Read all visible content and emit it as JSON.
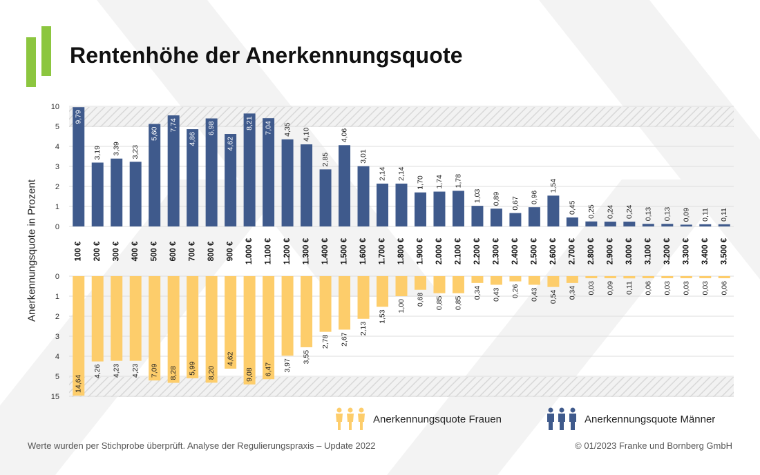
{
  "title": "Rentenhöhe der Anerkennungsquote",
  "footer": {
    "note": "Werte wurden per Stichprobe überprüft. Analyse der Regulierungspraxis – Update 2022",
    "copyright": "© 01/2023 Franke und Bornberg GmbH"
  },
  "colors": {
    "men": "#3f5a8c",
    "women": "#fdcd6b",
    "accent": "#8cc63f"
  },
  "legend": {
    "women": "Anerkennungsquote Frauen",
    "men": "Anerkennungsquote Männer",
    "women_icon": "women-group-icon",
    "men_icon": "men-group-icon"
  },
  "chart_data": {
    "type": "bar",
    "ylabel": "Anerkennungsquote in Prozent",
    "categories": [
      "100 €",
      "200 €",
      "300 €",
      "400 €",
      "500 €",
      "600 €",
      "700 €",
      "800 €",
      "900 €",
      "1.000 €",
      "1.100 €",
      "1.200 €",
      "1.300 €",
      "1.400 €",
      "1.500 €",
      "1.600 €",
      "1.700 €",
      "1.800 €",
      "1.900 €",
      "2.000 €",
      "2.100 €",
      "2.200 €",
      "2.300 €",
      "2.400 €",
      "2.500 €",
      "2.600 €",
      "2.700 €",
      "2.800 €",
      "2.900 €",
      "3.000 €",
      "3.100 €",
      "3.200 €",
      "3.300 €",
      "3.400 €",
      "3.500 €"
    ],
    "series": [
      {
        "name": "Anerkennungsquote Männer",
        "values": [
          9.79,
          3.19,
          3.39,
          3.23,
          5.6,
          7.74,
          4.86,
          6.98,
          4.62,
          8.21,
          7.04,
          4.35,
          4.1,
          2.85,
          4.06,
          3.01,
          2.14,
          2.14,
          1.7,
          1.74,
          1.78,
          1.03,
          0.89,
          0.67,
          0.96,
          1.54,
          0.45,
          0.25,
          0.24,
          0.24,
          0.13,
          0.13,
          0.09,
          0.11,
          0.11
        ],
        "labels": [
          "9,79",
          "3,19",
          "3,39",
          "3,23",
          "5,60",
          "7,74",
          "4,86",
          "6,98",
          "4,62",
          "8,21",
          "7,04",
          "4,35",
          "4,10",
          "2,85",
          "4,06",
          "3,01",
          "2,14",
          "2,14",
          "1,70",
          "1,74",
          "1,78",
          "1,03",
          "0,89",
          "0,67",
          "0,96",
          "1,54",
          "0,45",
          "0,25",
          "0,24",
          "0,24",
          "0,13",
          "0,13",
          "0,09",
          "0,11",
          "0,11"
        ]
      },
      {
        "name": "Anerkennungsquote Frauen",
        "values": [
          14.64,
          4.26,
          4.23,
          4.23,
          7.09,
          8.28,
          5.99,
          8.2,
          4.62,
          9.08,
          6.47,
          3.97,
          3.55,
          2.78,
          2.67,
          2.13,
          1.53,
          1.0,
          0.68,
          0.85,
          0.85,
          0.34,
          0.43,
          0.26,
          0.43,
          0.54,
          0.34,
          0.03,
          0.09,
          0.11,
          0.06,
          0.03,
          0.03,
          0.03,
          0.06
        ],
        "labels": [
          "14,64",
          "4,26",
          "4,23",
          "4,23",
          "7,09",
          "8,28",
          "5,99",
          "8,20",
          "4,62",
          "9,08",
          "6,47",
          "3,97",
          "3,55",
          "2,78",
          "2,67",
          "2,13",
          "1,53",
          "1,00",
          "0,68",
          "0,85",
          "0,85",
          "0,34",
          "0,43",
          "0,26",
          "0,43",
          "0,54",
          "0,34",
          "0,03",
          "0,09",
          "0,11",
          "0,06",
          "0,03",
          "0,03",
          "0,03",
          "0,06"
        ]
      }
    ],
    "top_axis": {
      "ticks": [
        "0",
        "1",
        "2",
        "3",
        "4",
        "5",
        "10"
      ],
      "break_between": [
        "5",
        "10"
      ]
    },
    "bottom_axis": {
      "ticks": [
        "0",
        "1",
        "2",
        "3",
        "4",
        "5",
        "15"
      ],
      "break_between": [
        "5",
        "15"
      ]
    },
    "grid": true,
    "legend_position": "bottom-right"
  }
}
